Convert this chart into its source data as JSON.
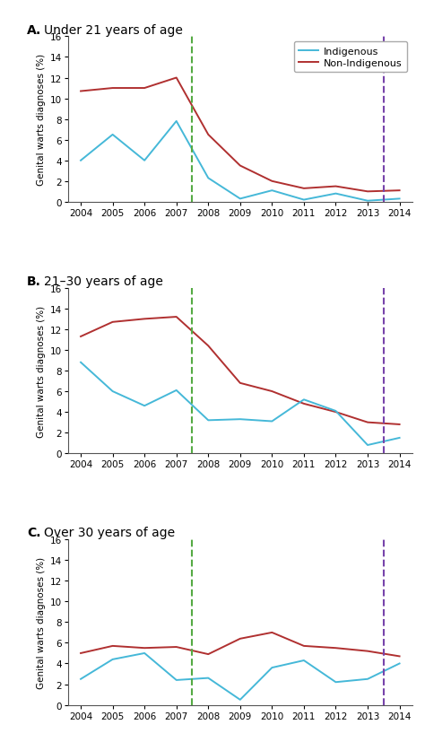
{
  "years": [
    2004,
    2005,
    2006,
    2007,
    2008,
    2009,
    2010,
    2011,
    2012,
    2013,
    2014
  ],
  "panels": [
    {
      "label": "A.",
      "title": "Under 21 years of age",
      "indigenous": [
        4.0,
        6.5,
        4.0,
        7.8,
        2.3,
        0.3,
        1.1,
        0.2,
        0.8,
        0.1,
        0.3
      ],
      "non_indigenous": [
        10.7,
        11.0,
        11.0,
        12.0,
        6.5,
        3.5,
        2.0,
        1.3,
        1.5,
        1.0,
        1.1
      ],
      "show_legend": true
    },
    {
      "label": "B.",
      "title": "21–30 years of age",
      "indigenous": [
        8.8,
        6.0,
        4.6,
        6.1,
        3.2,
        3.3,
        3.1,
        5.2,
        4.1,
        0.8,
        1.5
      ],
      "non_indigenous": [
        11.3,
        12.7,
        13.0,
        13.2,
        10.4,
        6.8,
        6.0,
        4.8,
        4.0,
        3.0,
        2.8
      ],
      "show_legend": false
    },
    {
      "label": "C.",
      "title": "Over 30 years of age",
      "indigenous": [
        2.5,
        4.4,
        5.0,
        2.4,
        2.6,
        0.5,
        3.6,
        4.3,
        2.2,
        2.5,
        4.0
      ],
      "non_indigenous": [
        5.0,
        5.7,
        5.5,
        5.6,
        4.9,
        6.4,
        7.0,
        5.7,
        5.5,
        5.2,
        4.7
      ],
      "show_legend": false
    }
  ],
  "green_vline": 2007.5,
  "purple_vline": 2013.5,
  "indigenous_color": "#45b8d8",
  "non_indigenous_color": "#b03030",
  "green_color": "#55aa44",
  "purple_color": "#7744aa",
  "ylabel": "Genital warts diagnoses (%)",
  "ylim": [
    0,
    16
  ],
  "yticks": [
    0,
    2,
    4,
    6,
    8,
    10,
    12,
    14,
    16
  ],
  "legend_indigenous": "Indigenous",
  "legend_non_indigenous": "Non-Indigenous",
  "figsize": [
    4.74,
    8.28
  ],
  "dpi": 100
}
